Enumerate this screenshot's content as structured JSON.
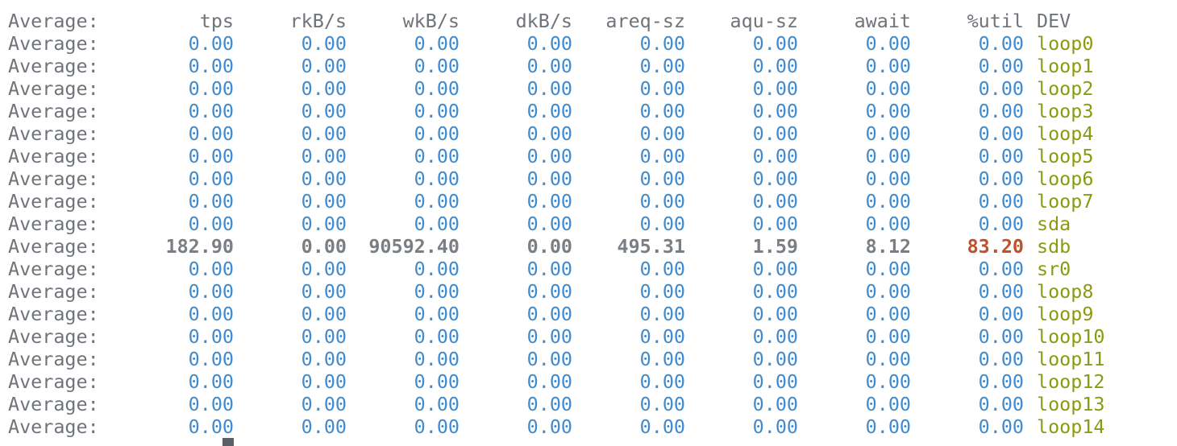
{
  "header": {
    "label": "Average:",
    "columns": [
      "tps",
      "rkB/s",
      "wkB/s",
      "dkB/s",
      "areq-sz",
      "aqu-sz",
      "await",
      "%util"
    ],
    "dev": "DEV"
  },
  "rows": [
    {
      "label": "Average:",
      "values": [
        "0.00",
        "0.00",
        "0.00",
        "0.00",
        "0.00",
        "0.00",
        "0.00",
        "0.00"
      ],
      "dev": "loop0"
    },
    {
      "label": "Average:",
      "values": [
        "0.00",
        "0.00",
        "0.00",
        "0.00",
        "0.00",
        "0.00",
        "0.00",
        "0.00"
      ],
      "dev": "loop1"
    },
    {
      "label": "Average:",
      "values": [
        "0.00",
        "0.00",
        "0.00",
        "0.00",
        "0.00",
        "0.00",
        "0.00",
        "0.00"
      ],
      "dev": "loop2"
    },
    {
      "label": "Average:",
      "values": [
        "0.00",
        "0.00",
        "0.00",
        "0.00",
        "0.00",
        "0.00",
        "0.00",
        "0.00"
      ],
      "dev": "loop3"
    },
    {
      "label": "Average:",
      "values": [
        "0.00",
        "0.00",
        "0.00",
        "0.00",
        "0.00",
        "0.00",
        "0.00",
        "0.00"
      ],
      "dev": "loop4"
    },
    {
      "label": "Average:",
      "values": [
        "0.00",
        "0.00",
        "0.00",
        "0.00",
        "0.00",
        "0.00",
        "0.00",
        "0.00"
      ],
      "dev": "loop5"
    },
    {
      "label": "Average:",
      "values": [
        "0.00",
        "0.00",
        "0.00",
        "0.00",
        "0.00",
        "0.00",
        "0.00",
        "0.00"
      ],
      "dev": "loop6"
    },
    {
      "label": "Average:",
      "values": [
        "0.00",
        "0.00",
        "0.00",
        "0.00",
        "0.00",
        "0.00",
        "0.00",
        "0.00"
      ],
      "dev": "loop7"
    },
    {
      "label": "Average:",
      "values": [
        "0.00",
        "0.00",
        "0.00",
        "0.00",
        "0.00",
        "0.00",
        "0.00",
        "0.00"
      ],
      "dev": "sda"
    },
    {
      "label": "Average:",
      "values": [
        "182.90",
        "0.00",
        "90592.40",
        "0.00",
        "495.31",
        "1.59",
        "8.12",
        "83.20"
      ],
      "dev": "sdb",
      "highlight": true
    },
    {
      "label": "Average:",
      "values": [
        "0.00",
        "0.00",
        "0.00",
        "0.00",
        "0.00",
        "0.00",
        "0.00",
        "0.00"
      ],
      "dev": "sr0"
    },
    {
      "label": "Average:",
      "values": [
        "0.00",
        "0.00",
        "0.00",
        "0.00",
        "0.00",
        "0.00",
        "0.00",
        "0.00"
      ],
      "dev": "loop8"
    },
    {
      "label": "Average:",
      "values": [
        "0.00",
        "0.00",
        "0.00",
        "0.00",
        "0.00",
        "0.00",
        "0.00",
        "0.00"
      ],
      "dev": "loop9"
    },
    {
      "label": "Average:",
      "values": [
        "0.00",
        "0.00",
        "0.00",
        "0.00",
        "0.00",
        "0.00",
        "0.00",
        "0.00"
      ],
      "dev": "loop10"
    },
    {
      "label": "Average:",
      "values": [
        "0.00",
        "0.00",
        "0.00",
        "0.00",
        "0.00",
        "0.00",
        "0.00",
        "0.00"
      ],
      "dev": "loop11"
    },
    {
      "label": "Average:",
      "values": [
        "0.00",
        "0.00",
        "0.00",
        "0.00",
        "0.00",
        "0.00",
        "0.00",
        "0.00"
      ],
      "dev": "loop12"
    },
    {
      "label": "Average:",
      "values": [
        "0.00",
        "0.00",
        "0.00",
        "0.00",
        "0.00",
        "0.00",
        "0.00",
        "0.00"
      ],
      "dev": "loop13"
    },
    {
      "label": "Average:",
      "values": [
        "0.00",
        "0.00",
        "0.00",
        "0.00",
        "0.00",
        "0.00",
        "0.00",
        "0.00"
      ],
      "dev": "loop14"
    }
  ],
  "colors": {
    "background": "#ffffff",
    "header_text": "#6f747a",
    "value_text": "#3e8bd0",
    "value_highlight": "#7a7f85",
    "util_highlight": "#c0502a",
    "device_text": "#8a9a12"
  }
}
